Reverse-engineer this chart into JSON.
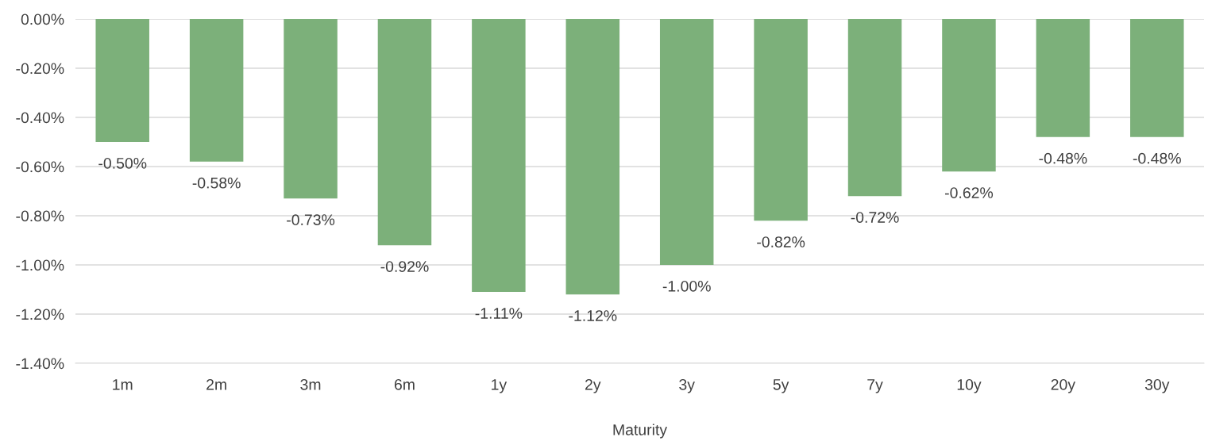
{
  "chart_data": {
    "type": "bar",
    "xlabel": "Maturity",
    "categories": [
      "1m",
      "2m",
      "3m",
      "6m",
      "1y",
      "2y",
      "3y",
      "5y",
      "7y",
      "10y",
      "20y",
      "30y"
    ],
    "values": [
      -0.5,
      -0.58,
      -0.73,
      -0.92,
      -1.11,
      -1.12,
      -1.0,
      -0.82,
      -0.72,
      -0.62,
      -0.48,
      -0.48
    ],
    "value_labels": [
      "-0.50%",
      "-0.58%",
      "-0.73%",
      "-0.92%",
      "-1.11%",
      "-1.12%",
      "-1.00%",
      "-0.82%",
      "-0.72%",
      "-0.62%",
      "-0.48%",
      "-0.48%"
    ],
    "color": "#7cb07a",
    "ylim": [
      -1.4,
      0
    ],
    "yticks": [
      {
        "value": 0,
        "label": "0.00%"
      },
      {
        "value": -0.2,
        "label": "-0.20%"
      },
      {
        "value": -0.4,
        "label": "-0.40%"
      },
      {
        "value": -0.6,
        "label": "-0.60%"
      },
      {
        "value": -0.8,
        "label": "-0.80%"
      },
      {
        "value": -1.0,
        "label": "-1.00%"
      },
      {
        "value": -1.2,
        "label": "-1.20%"
      },
      {
        "value": -1.4,
        "label": "-1.40%"
      }
    ],
    "grid": "y"
  }
}
